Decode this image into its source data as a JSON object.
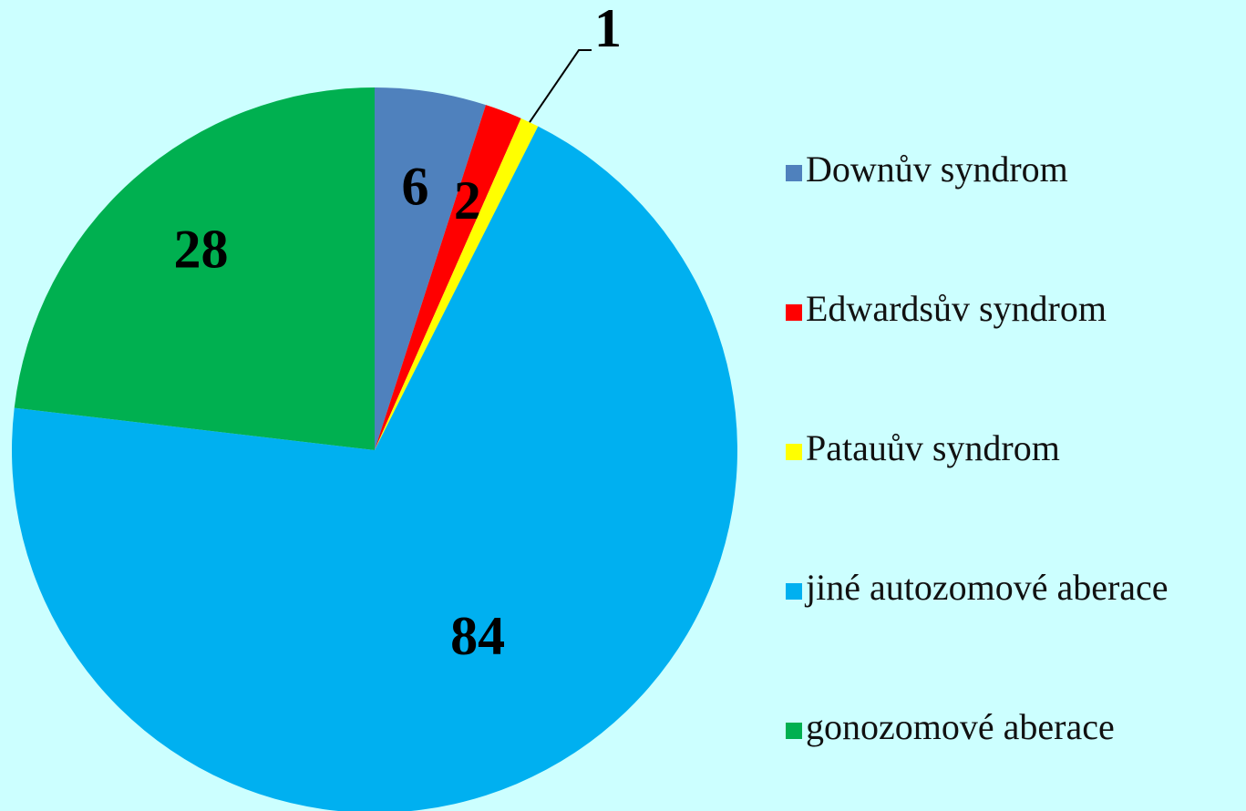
{
  "chart_data": {
    "type": "pie",
    "categories": [
      "Downův syndrom",
      "Edwardsův syndrom",
      "Patauův syndrom",
      "jiné autozomové aberace",
      "gonozomové aberace"
    ],
    "values": [
      6,
      2,
      1,
      84,
      28
    ],
    "colors": [
      "#4f81bd",
      "#ff0000",
      "#ffff00",
      "#00b0f0",
      "#00b050"
    ],
    "legend": "right"
  }
}
